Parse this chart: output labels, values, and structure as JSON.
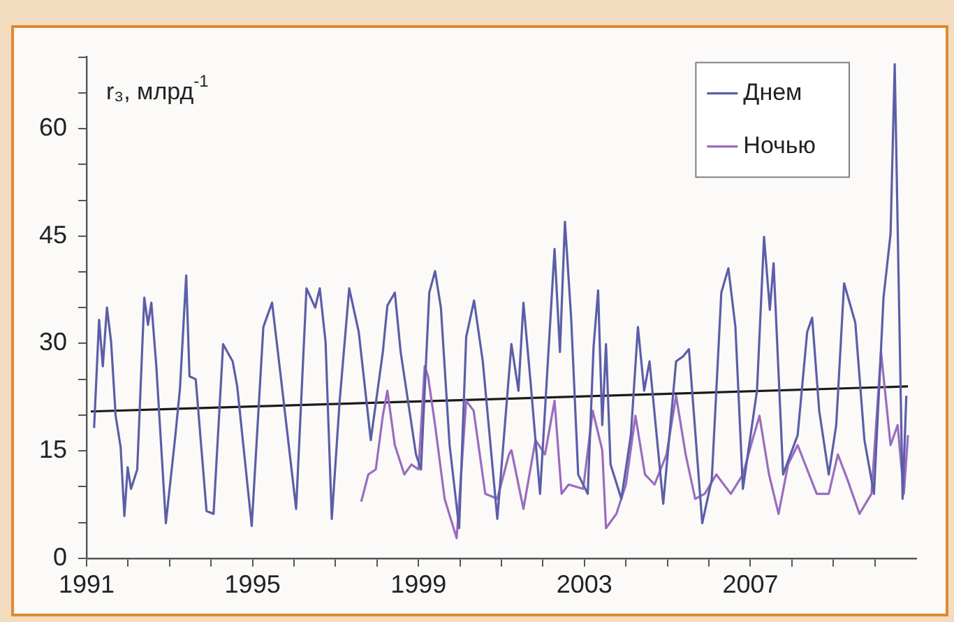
{
  "chart_data": {
    "type": "line",
    "ylabel": "r₃, млрд$^{-1}$",
    "xlim": [
      1991,
      2011
    ],
    "xticks": [
      1991,
      {
        "value": 1992,
        "label": null
      },
      {
        "value": 1993,
        "label": null
      },
      {
        "value": 1994,
        "label": null
      },
      1995,
      {
        "value": 1996,
        "label": null
      },
      {
        "value": 1997,
        "label": null
      },
      {
        "value": 1998,
        "label": null
      },
      1999,
      {
        "value": 2000,
        "label": null
      },
      {
        "value": 2001,
        "label": null
      },
      {
        "value": 2002,
        "label": null
      },
      2003,
      {
        "value": 2004,
        "label": null
      },
      {
        "value": 2005,
        "label": null
      },
      {
        "value": 2006,
        "label": null
      },
      2007,
      {
        "value": 2008,
        "label": null
      },
      {
        "value": 2009,
        "label": null
      },
      {
        "value": 2010,
        "label": null
      }
    ],
    "ylim": [
      0,
      70
    ],
    "yticks": [
      0,
      {
        "value": 5,
        "label": null
      },
      {
        "value": 10,
        "label": null
      },
      15,
      {
        "value": 20,
        "label": null
      },
      {
        "value": 25,
        "label": null
      },
      30,
      {
        "value": 35,
        "label": null
      },
      {
        "value": 40,
        "label": null
      },
      45,
      {
        "value": 50,
        "label": null
      },
      {
        "value": 55,
        "label": null
      },
      60,
      {
        "value": 65,
        "label": null
      },
      {
        "value": 70,
        "label": null
      }
    ],
    "legend": "top right",
    "marker": "none",
    "line_style": "solid",
    "series": [
      {
        "name": "Днем",
        "color": "#5b5ea8",
        "x": [
          1991.18,
          1991.3,
          1991.39,
          1991.49,
          1991.59,
          1991.7,
          1991.82,
          1991.91,
          1991.99,
          1992.07,
          1992.22,
          1992.39,
          1992.48,
          1992.56,
          1992.68,
          1992.91,
          1993.14,
          1993.25,
          1993.4,
          1993.48,
          1993.63,
          1993.89,
          1994.06,
          1994.29,
          1994.52,
          1994.63,
          1994.98,
          1995.26,
          1995.47,
          1995.72,
          1996.05,
          1996.3,
          1996.51,
          1996.62,
          1996.76,
          1996.91,
          1997.1,
          1997.33,
          1997.56,
          1997.85,
          1998.14,
          1998.25,
          1998.43,
          1998.57,
          1998.94,
          1999.06,
          1999.26,
          1999.4,
          1999.54,
          1999.75,
          1999.98,
          2000.15,
          2000.34,
          2000.55,
          2000.9,
          2001.24,
          2001.41,
          2001.53,
          2001.7,
          2001.93,
          2002.28,
          2002.41,
          2002.53,
          2002.68,
          2002.85,
          2003.08,
          2003.22,
          2003.33,
          2003.43,
          2003.52,
          2003.63,
          2003.89,
          2004.12,
          2004.29,
          2004.44,
          2004.57,
          2004.9,
          2005.21,
          2005.38,
          2005.52,
          2005.84,
          2006.07,
          2006.3,
          2006.47,
          2006.64,
          2006.82,
          2007.16,
          2007.33,
          2007.47,
          2007.56,
          2007.79,
          2008.14,
          2008.37,
          2008.49,
          2008.66,
          2008.89,
          2009.07,
          2009.26,
          2009.53,
          2009.75,
          2009.98,
          2010.21,
          2010.38,
          2010.48,
          2010.67,
          2010.76
        ],
        "values": [
          18.2,
          33.3,
          26.8,
          35,
          30.2,
          19.9,
          15.5,
          5.9,
          12.7,
          9.7,
          12.4,
          36.4,
          32.6,
          35.7,
          26.8,
          4.9,
          17.2,
          23.7,
          39.5,
          25.4,
          25,
          6.6,
          6.2,
          29.9,
          27.5,
          24,
          4.5,
          32.3,
          35.7,
          23.4,
          6.9,
          37.7,
          35,
          37.7,
          30.2,
          5.5,
          22,
          37.7,
          31.6,
          16.5,
          28.8,
          35.3,
          37.1,
          28.8,
          14.5,
          12.4,
          37.1,
          40.1,
          35,
          15.8,
          4.2,
          30.9,
          36,
          27.5,
          5.5,
          29.9,
          23.4,
          35.7,
          24.7,
          9,
          43.2,
          28.8,
          47,
          33.6,
          11.7,
          9,
          29.5,
          37.4,
          18.6,
          29.9,
          13.1,
          8.3,
          17.2,
          32.3,
          23.4,
          27.5,
          7.6,
          27.5,
          28.2,
          29.2,
          4.9,
          11,
          37.1,
          40.5,
          32.3,
          9.7,
          23.4,
          44.9,
          34.7,
          41.2,
          11.7,
          17.2,
          31.6,
          33.6,
          20.6,
          11.7,
          18.6,
          38.4,
          32.9,
          16.5,
          9,
          36.4,
          45.3,
          69,
          8.3,
          22.7
        ]
      },
      {
        "name": "Ночью",
        "color": "#9a6cc0",
        "x": [
          1997.62,
          1997.79,
          1997.97,
          1998.14,
          1998.25,
          1998.43,
          1998.66,
          1998.83,
          1999,
          1999.15,
          1999.23,
          1999.4,
          1999.63,
          1999.92,
          2000.15,
          2000.33,
          2000.61,
          2000.9,
          2001.18,
          2001.24,
          2001.53,
          2001.82,
          2002.05,
          2002.28,
          2002.45,
          2002.62,
          2002.97,
          2003.2,
          2003.43,
          2003.52,
          2003.77,
          2004,
          2004.23,
          2004.46,
          2004.69,
          2004.98,
          2005.21,
          2005.44,
          2005.67,
          2005.9,
          2006.18,
          2006.53,
          2006.82,
          2007.05,
          2007.22,
          2007.45,
          2007.68,
          2007.91,
          2008.14,
          2008.37,
          2008.6,
          2008.89,
          2009.11,
          2009.34,
          2009.63,
          2009.92,
          2010.15,
          2010.38,
          2010.55,
          2010.7,
          2010.8
        ],
        "values": [
          7.9,
          11.7,
          12.4,
          19.9,
          23.4,
          15.8,
          11.7,
          13.1,
          12.4,
          26.8,
          25.4,
          18.6,
          8.3,
          2.8,
          22,
          20.6,
          9,
          8.3,
          14.5,
          15.1,
          6.9,
          16.5,
          14.5,
          22,
          9,
          10.3,
          9.7,
          20.6,
          15.1,
          4.2,
          6.2,
          10.3,
          19.9,
          11.7,
          10.3,
          14.5,
          22.7,
          14.5,
          8.3,
          9,
          11.7,
          9,
          11.7,
          16.5,
          19.9,
          11.7,
          6.2,
          13.1,
          15.8,
          12.4,
          9,
          9,
          14.5,
          11,
          6.2,
          9,
          28.8,
          15.8,
          18.6,
          9,
          17.2
        ]
      },
      {
        "color": "#1a1a1a",
        "x": [
          1991.1,
          2010.8
        ],
        "values": [
          20.5,
          24
        ]
      }
    ]
  }
}
